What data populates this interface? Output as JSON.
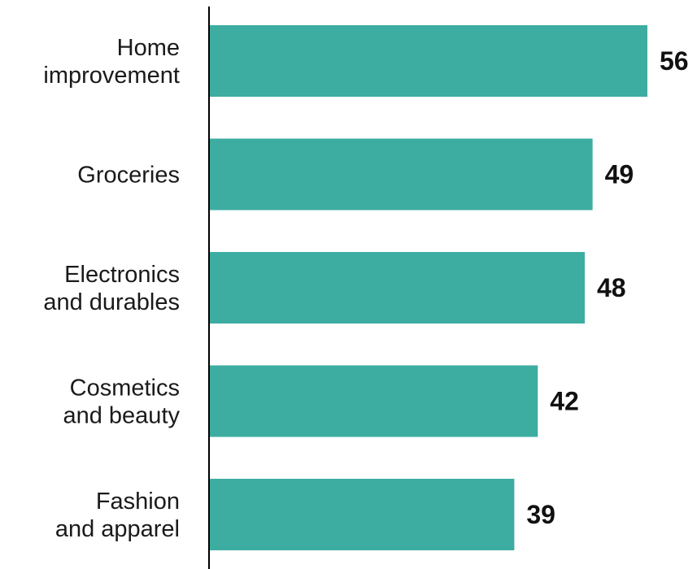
{
  "chart_data": {
    "type": "bar",
    "orientation": "horizontal",
    "categories": [
      [
        "Home",
        "improvement"
      ],
      [
        "Groceries"
      ],
      [
        "Electronics",
        "and durables"
      ],
      [
        "Cosmetics",
        "and beauty"
      ],
      [
        "Fashion",
        "and apparel"
      ]
    ],
    "values": [
      56,
      49,
      48,
      42,
      39
    ],
    "value_labels": [
      "56",
      "49",
      "48",
      "42",
      "39"
    ],
    "title": "",
    "xlabel": "",
    "ylabel": "",
    "xlim": [
      0,
      56
    ],
    "grid": false,
    "legend": "none",
    "bar_color": "#3dada1",
    "axis_color": "#000000"
  }
}
